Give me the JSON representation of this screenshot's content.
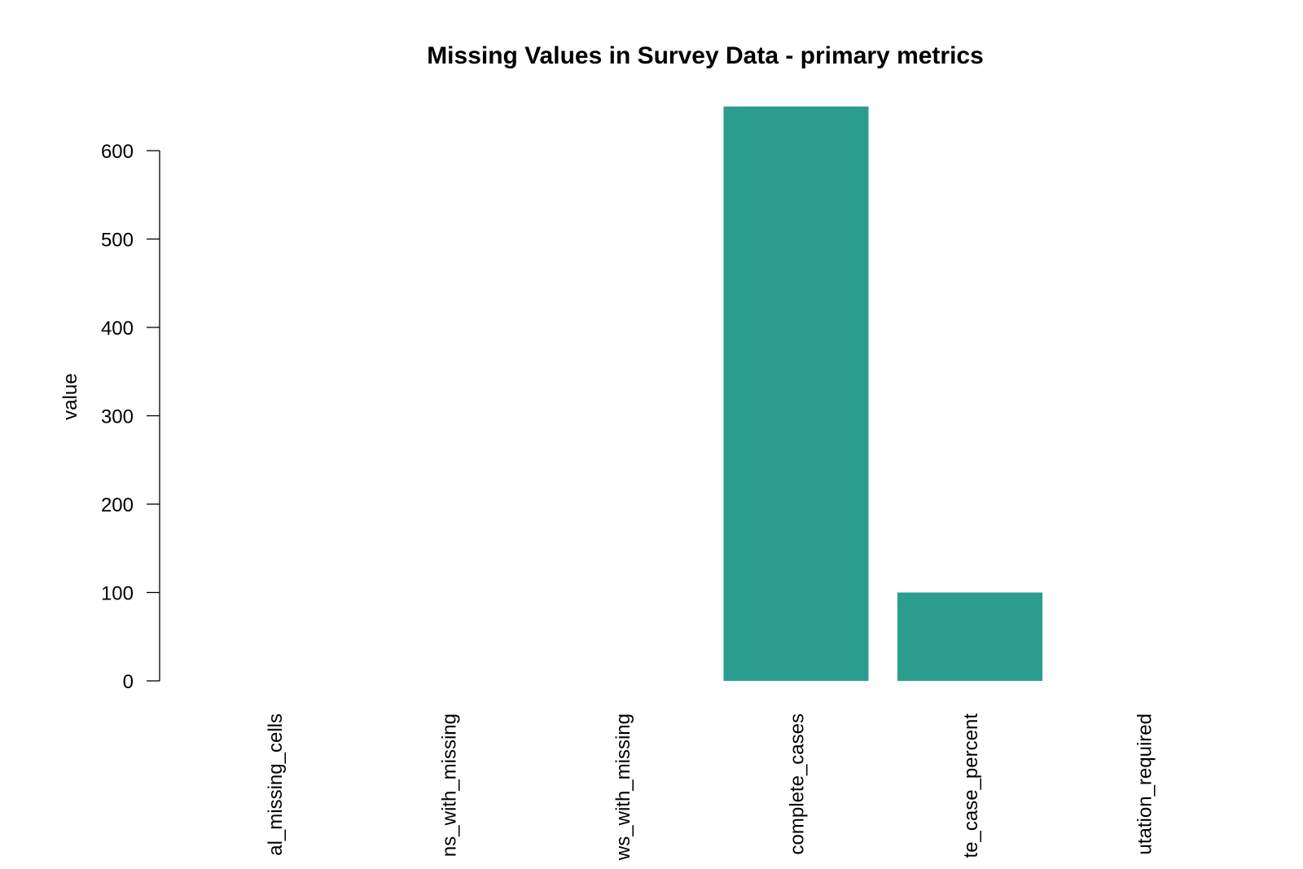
{
  "chart_data": {
    "type": "bar",
    "title": "Missing Values in Survey Data - primary metrics",
    "xlabel": "",
    "ylabel": "value",
    "categories": [
      "total_missing_cells",
      "columns_with_missing",
      "rows_with_missing",
      "complete_cases",
      "complete_case_percent",
      "imputation_required"
    ],
    "category_visible_text": [
      "al_missing_cells",
      "ns_with_missing",
      "ws_with_missing",
      "complete_cases",
      "te_case_percent",
      "utation_required"
    ],
    "values": [
      0,
      0,
      0,
      650,
      100,
      0
    ],
    "ylim": [
      0,
      650
    ],
    "yticks": [
      0,
      100,
      200,
      300,
      400,
      500,
      600
    ],
    "grid": false,
    "legend": "none",
    "bar_color": "#2a9d8f"
  }
}
